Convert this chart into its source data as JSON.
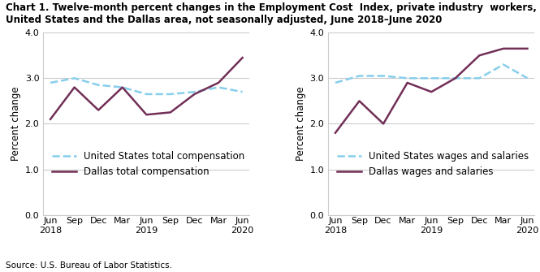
{
  "title_line1": "Chart 1. Twelve-month percent changes in the Employment Cost  Index, private industry  workers,",
  "title_line2": "United States and the Dallas area, not seasonally adjusted, June 2018–June 2020",
  "source": "Source: U.S. Bureau of Labor Statistics.",
  "x_labels": [
    "Jun\n2018",
    "Sep",
    "Dec",
    "Mar",
    "Jun\n2019",
    "Sep",
    "Dec",
    "Mar",
    "Jun\n2020"
  ],
  "ylim": [
    0.0,
    4.0
  ],
  "yticks": [
    0.0,
    1.0,
    2.0,
    3.0,
    4.0
  ],
  "ylabel": "Percent change",
  "chart1": {
    "us_total_comp": [
      2.9,
      3.0,
      2.85,
      2.8,
      2.65,
      2.65,
      2.7,
      2.8,
      2.7
    ],
    "dallas_total_comp": [
      2.1,
      2.8,
      2.3,
      2.8,
      2.2,
      2.25,
      2.65,
      2.9,
      3.45
    ],
    "legend1": "United States total compensation",
    "legend2": "Dallas total compensation"
  },
  "chart2": {
    "us_wages": [
      2.9,
      3.05,
      3.05,
      3.0,
      3.0,
      3.0,
      3.0,
      3.3,
      3.0
    ],
    "dallas_wages": [
      1.8,
      2.5,
      2.0,
      2.9,
      2.7,
      3.0,
      3.5,
      3.65,
      3.65
    ],
    "legend1": "United States wages and salaries",
    "legend2": "Dallas wages and salaries"
  },
  "us_color": "#87CEEB",
  "dallas_color": "#722F57",
  "linewidth": 1.8,
  "grid_color": "#cccccc",
  "background_color": "#ffffff",
  "title_color": "#000000",
  "axis_label_fontsize": 8.5,
  "tick_fontsize": 8,
  "legend_fontsize": 8.5,
  "title_fontsize": 8.5
}
